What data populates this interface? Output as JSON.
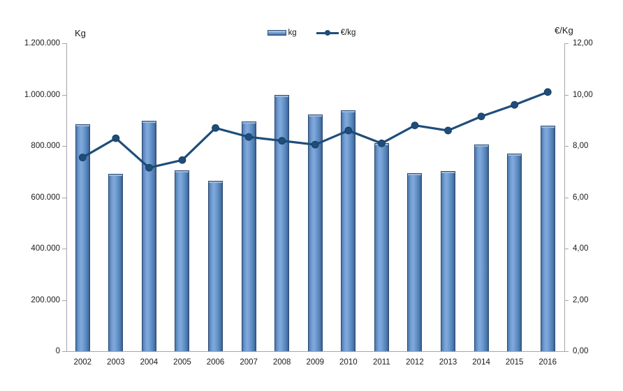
{
  "chart_data": {
    "type": "combo-bar-line",
    "title": "",
    "categories": [
      "2002",
      "2003",
      "2004",
      "2005",
      "2006",
      "2007",
      "2008",
      "2009",
      "2010",
      "2011",
      "2012",
      "2013",
      "2014",
      "2015",
      "2016"
    ],
    "series": [
      {
        "name": "kg",
        "type": "bar",
        "axis": "left",
        "color": "#6a98ce",
        "values": [
          885000,
          690000,
          898000,
          705000,
          663000,
          896000,
          1000000,
          922000,
          938000,
          810000,
          694000,
          702000,
          806000,
          771000,
          878000
        ]
      },
      {
        "name": "€/kg",
        "type": "line",
        "axis": "right",
        "color": "#1e4d7b",
        "values": [
          7.55,
          8.3,
          7.15,
          7.45,
          8.7,
          8.35,
          8.2,
          8.05,
          8.6,
          8.1,
          8.8,
          8.6,
          9.15,
          9.6,
          10.1
        ]
      }
    ],
    "left_axis": {
      "title": "Kg",
      "min": 0,
      "max": 1200000,
      "tick_step": 200000,
      "tick_labels": [
        "0",
        "200.000",
        "400.000",
        "600.000",
        "800.000",
        "1.000.000",
        "1.200.000"
      ]
    },
    "right_axis": {
      "title": "€/Kg",
      "min": 0,
      "max": 12,
      "tick_step": 2,
      "tick_labels": [
        "0,00",
        "2,00",
        "4,00",
        "6,00",
        "8,00",
        "10,00",
        "12,00"
      ]
    },
    "legend": {
      "position": "top-center",
      "entries": [
        "kg",
        "€/kg"
      ]
    },
    "grid": false,
    "colors": {
      "axis_line": "#a6a6a6",
      "text": "#1a1a1a",
      "bar_border": "#2b4a72",
      "bar_fill": "#6a98ce",
      "bar_cap": "#9cbade",
      "line": "#1e4d7b",
      "background": "#ffffff"
    }
  }
}
